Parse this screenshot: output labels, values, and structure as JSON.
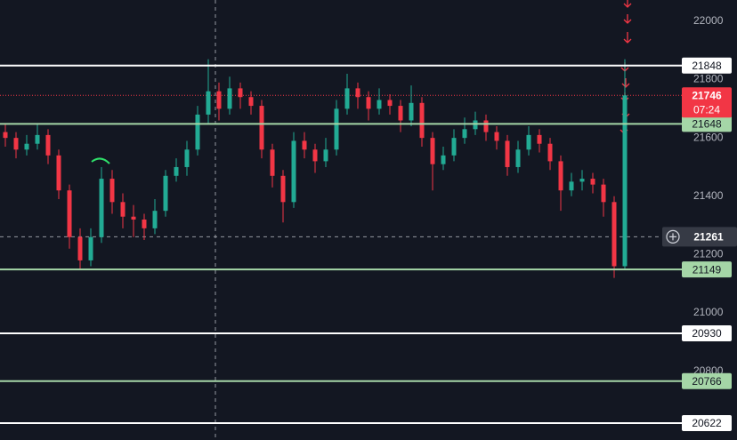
{
  "chart_data": {
    "type": "candlestick",
    "series": {
      "open": [
        21620,
        21600,
        21560,
        21580,
        21610,
        21540,
        21420,
        21260,
        21180,
        21260,
        21460,
        21380,
        21330,
        21320,
        21290,
        21350,
        21470,
        21500,
        21560,
        21680,
        21760,
        21700,
        21770,
        21740,
        21710,
        21560,
        21470,
        21380,
        21590,
        21560,
        21520,
        21560,
        21700,
        21770,
        21740,
        21700,
        21730,
        21710,
        21660,
        21720,
        21600,
        21510,
        21540,
        21600,
        21630,
        21660,
        21620,
        21590,
        21500,
        21560,
        21610,
        21580,
        21520,
        21420,
        21450,
        21460,
        21440,
        21380,
        21160
      ],
      "high": [
        21650,
        21620,
        21610,
        21650,
        21630,
        21560,
        21440,
        21290,
        21290,
        21500,
        21490,
        21410,
        21370,
        21340,
        21390,
        21490,
        21530,
        21590,
        21710,
        21870,
        21790,
        21810,
        21790,
        21760,
        21730,
        21580,
        21490,
        21620,
        21620,
        21580,
        21600,
        21730,
        21820,
        21790,
        21760,
        21770,
        21750,
        21730,
        21780,
        21740,
        21620,
        21570,
        21630,
        21670,
        21690,
        21680,
        21640,
        21610,
        21590,
        21640,
        21630,
        21600,
        21540,
        21480,
        21490,
        21480,
        21460,
        21400,
        21870
      ],
      "low": [
        21570,
        21530,
        21540,
        21560,
        21510,
        21390,
        21220,
        21150,
        21160,
        21240,
        21340,
        21290,
        21260,
        21250,
        21270,
        21330,
        21450,
        21470,
        21540,
        21650,
        21660,
        21680,
        21700,
        21680,
        21530,
        21430,
        21310,
        21360,
        21530,
        21480,
        21500,
        21540,
        21680,
        21700,
        21660,
        21680,
        21680,
        21620,
        21640,
        21570,
        21420,
        21490,
        21520,
        21580,
        21610,
        21590,
        21560,
        21470,
        21480,
        21540,
        21550,
        21490,
        21350,
        21400,
        21420,
        21410,
        21330,
        21120,
        21150
      ],
      "close": [
        21600,
        21560,
        21580,
        21610,
        21540,
        21420,
        21260,
        21180,
        21260,
        21460,
        21380,
        21330,
        21320,
        21290,
        21350,
        21470,
        21500,
        21560,
        21680,
        21760,
        21700,
        21770,
        21740,
        21710,
        21560,
        21470,
        21380,
        21590,
        21560,
        21520,
        21560,
        21700,
        21770,
        21740,
        21700,
        21730,
        21710,
        21660,
        21720,
        21600,
        21510,
        21540,
        21600,
        21630,
        21660,
        21620,
        21590,
        21500,
        21560,
        21610,
        21580,
        21520,
        21420,
        21450,
        21460,
        21440,
        21380,
        21160,
        21746
      ]
    },
    "up_color": "#22ab94",
    "down_color": "#f23645",
    "ylim": [
      20564,
      22073
    ],
    "yticks": [
      22000,
      21800,
      21600,
      21400,
      21200,
      21000,
      20800
    ],
    "levels": [
      {
        "value": 21848,
        "color": "#ffffff"
      },
      {
        "value": 21648,
        "color": "#a5d6a7"
      },
      {
        "value": 21149,
        "color": "#a5d6a7"
      },
      {
        "value": 20930,
        "color": "#ffffff"
      },
      {
        "value": 20766,
        "color": "#a5d6a7"
      },
      {
        "value": 20622,
        "color": "#ffffff"
      }
    ],
    "last_price": 21746,
    "countdown": "07:24",
    "crosshair_price": 21261
  }
}
